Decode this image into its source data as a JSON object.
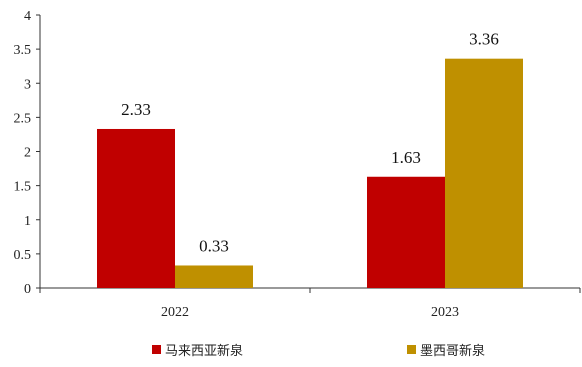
{
  "chart_data": {
    "type": "bar",
    "categories": [
      "2022",
      "2023"
    ],
    "series": [
      {
        "name": "马来西亚新泉",
        "values": [
          2.33,
          1.63
        ],
        "color": "#c00000"
      },
      {
        "name": "墨西哥新泉",
        "values": [
          0.33,
          3.36
        ],
        "color": "#bf9000"
      }
    ],
    "ylim": [
      0,
      4
    ],
    "yticks": [
      "0",
      "0.5",
      "1",
      "1.5",
      "2",
      "2.5",
      "3",
      "3.5",
      "4"
    ],
    "data_labels": [
      [
        "2.33",
        "1.63"
      ],
      [
        "0.33",
        "3.36"
      ]
    ],
    "legend_position": "bottom",
    "grid": false
  }
}
